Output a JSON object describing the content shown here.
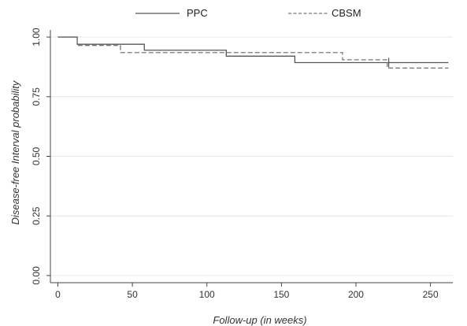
{
  "chart_data": {
    "type": "line",
    "subtype": "kaplan-meier step curves",
    "title": "",
    "xlabel": "Follow-up (in weeks)",
    "ylabel": "Disease-free Interval probability",
    "xlim": [
      -5,
      265
    ],
    "ylim": [
      -0.03,
      1.03
    ],
    "xticks": [
      0,
      50,
      100,
      150,
      200,
      250
    ],
    "yticks": [
      0.0,
      0.25,
      0.5,
      0.75,
      1.0
    ],
    "ytick_labels": [
      "0.00",
      "0.25",
      "0.50",
      "0.75",
      "1.00"
    ],
    "grid": "horizontal",
    "legend_position": "top",
    "series": [
      {
        "name": "PPC",
        "style": "solid",
        "color": "#555555",
        "x": [
          0,
          13,
          58,
          113,
          159,
          262
        ],
        "y": [
          1.0,
          0.97,
          0.945,
          0.92,
          0.893,
          0.893
        ],
        "censor_x": [
          222
        ]
      },
      {
        "name": "CBSM",
        "style": "dashed",
        "color": "#777777",
        "x": [
          0,
          13,
          42,
          113,
          191,
          221,
          262
        ],
        "y": [
          1.0,
          0.965,
          0.935,
          0.935,
          0.905,
          0.87,
          0.87
        ],
        "censor_x": []
      }
    ]
  }
}
